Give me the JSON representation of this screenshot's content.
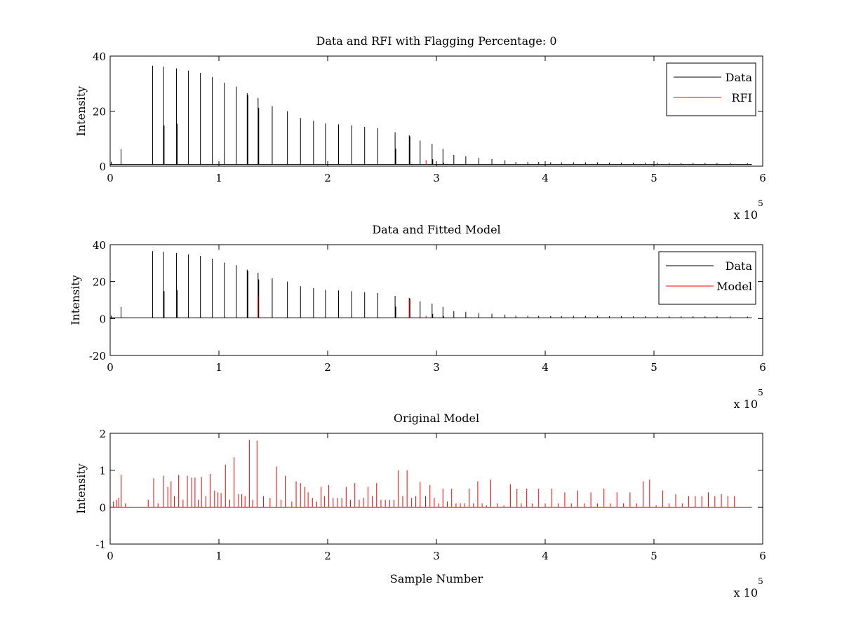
{
  "chart_data": [
    {
      "type": "line",
      "title": "Data and RFI with Flagging Percentage: 0",
      "xlabel": "",
      "ylabel": "Intensity",
      "xlim": [
        0,
        600000
      ],
      "ylim": [
        0,
        40
      ],
      "xticks": [
        "0",
        "1",
        "2",
        "3",
        "4",
        "5",
        "6"
      ],
      "yticks": [
        "0",
        "20",
        "40"
      ],
      "x_exponent_base": "x 10",
      "x_exponent_power": "5",
      "legend": [
        "Data",
        "RFI"
      ],
      "legend_position": "top-right",
      "colors": {
        "Data": "#000000",
        "RFI": "#ff0000"
      },
      "baseline": 0.6,
      "series": [
        {
          "name": "Data",
          "peaks_x": [
            1000,
            10000,
            39000,
            49000,
            61000,
            72000,
            83000,
            94000,
            105000,
            116000,
            126000,
            136000,
            149000,
            163000,
            175000,
            187000,
            198000,
            210000,
            222000,
            234000,
            246000,
            262000,
            275000,
            285000,
            296000,
            306000,
            316000,
            327000,
            339000,
            351000,
            363000,
            373000,
            384000,
            394000,
            405000,
            415000,
            426000,
            437000,
            448000,
            459000,
            470000,
            481000,
            492000,
            503000,
            514000,
            525000,
            536000,
            547000,
            558000,
            570000,
            586000
          ],
          "peaks_y": [
            1.6,
            6.2,
            36.5,
            36.2,
            35.5,
            34.7,
            33.9,
            32.4,
            30.3,
            28.9,
            26.5,
            24.8,
            21.8,
            20.0,
            17.5,
            16.5,
            15.5,
            15.2,
            14.8,
            14.3,
            13.8,
            12.3,
            11.2,
            9.3,
            8.1,
            6.3,
            4.1,
            3.6,
            3.0,
            2.6,
            2.1,
            1.5,
            1.5,
            1.5,
            1.4,
            1.4,
            1.4,
            1.4,
            1.4,
            1.3,
            1.3,
            1.3,
            1.3,
            1.3,
            1.2,
            1.2,
            1.2,
            1.2,
            1.2,
            1.2,
            1.1
          ],
          "secondary_x": [
            49500,
            61500,
            126500,
            136500,
            262500,
            275500,
            296500,
            306500
          ],
          "secondary_y": [
            14.8,
            15.4,
            25.8,
            21.2,
            6.4,
            10.8,
            2.5,
            1.2
          ]
        },
        {
          "name": "RFI",
          "peaks_x": [
            290500
          ],
          "peaks_y": [
            2.2
          ]
        }
      ]
    },
    {
      "type": "line",
      "title": "Data and Fitted Model",
      "xlabel": "",
      "ylabel": "Intensity",
      "xlim": [
        0,
        600000
      ],
      "ylim": [
        -20,
        40
      ],
      "xticks": [
        "0",
        "1",
        "2",
        "3",
        "4",
        "5",
        "6"
      ],
      "yticks": [
        "-20",
        "0",
        "20",
        "40"
      ],
      "x_exponent_base": "x 10",
      "x_exponent_power": "5",
      "legend": [
        "Data",
        "Model"
      ],
      "legend_position": "top-right",
      "colors": {
        "Data": "#000000",
        "Model": "#ff0000"
      },
      "baseline": 0.4,
      "series": [
        {
          "name": "Data",
          "peaks_x": [
            1000,
            10000,
            39000,
            49000,
            61000,
            72000,
            83000,
            94000,
            105000,
            116000,
            126000,
            136000,
            149000,
            163000,
            175000,
            187000,
            198000,
            210000,
            222000,
            234000,
            246000,
            262000,
            275000,
            285000,
            296000,
            306000,
            316000,
            327000,
            339000,
            351000,
            363000,
            373000,
            384000,
            394000,
            405000,
            415000,
            426000,
            437000,
            448000,
            459000,
            470000,
            481000,
            492000,
            503000,
            514000,
            525000,
            536000,
            547000,
            558000,
            570000,
            586000
          ],
          "peaks_y": [
            1.6,
            6.2,
            36.5,
            36.2,
            35.5,
            34.7,
            33.9,
            32.4,
            30.3,
            28.9,
            26.5,
            24.8,
            21.8,
            20.0,
            17.5,
            16.5,
            15.5,
            15.2,
            14.8,
            14.3,
            13.8,
            12.3,
            11.2,
            9.3,
            8.1,
            6.3,
            4.1,
            3.6,
            3.0,
            2.6,
            2.1,
            1.5,
            1.5,
            1.5,
            1.4,
            1.4,
            1.4,
            1.4,
            1.4,
            1.3,
            1.3,
            1.3,
            1.3,
            1.3,
            1.2,
            1.2,
            1.2,
            1.2,
            1.2,
            1.2,
            1.1
          ],
          "secondary_x": [
            49500,
            61500,
            126500,
            136500,
            262500,
            275500,
            296500,
            306500
          ],
          "secondary_y": [
            14.8,
            15.4,
            25.8,
            21.2,
            6.4,
            10.8,
            2.5,
            1.2
          ]
        },
        {
          "name": "Model",
          "peaks_x": [
            136000,
            275000,
            290500
          ],
          "peaks_y": [
            12.5,
            10.0,
            1.5
          ]
        }
      ]
    },
    {
      "type": "line",
      "title": "Original Model",
      "xlabel": "Sample Number",
      "ylabel": "Intensity",
      "xlim": [
        0,
        600000
      ],
      "ylim": [
        -1,
        2
      ],
      "xticks": [
        "0",
        "1",
        "2",
        "3",
        "4",
        "5",
        "6"
      ],
      "yticks": [
        "-1",
        "0",
        "1",
        "2"
      ],
      "x_exponent_base": "x 10",
      "x_exponent_power": "5",
      "colors": {
        "Model": "#ff0000"
      },
      "baseline": 0,
      "series": [
        {
          "name": "",
          "peaks_x": [
            3000,
            6000,
            8000,
            10000,
            14000,
            35000,
            40000,
            44000,
            49000,
            53000,
            56000,
            59000,
            63000,
            67000,
            71000,
            75000,
            78000,
            81000,
            84000,
            88000,
            92000,
            96000,
            99000,
            102000,
            106000,
            110000,
            114000,
            118000,
            121000,
            124000,
            128000,
            131000,
            135000,
            141000,
            147000,
            153000,
            157000,
            161000,
            167000,
            171000,
            175000,
            179000,
            182000,
            186000,
            190000,
            194000,
            197000,
            201000,
            205000,
            209000,
            213000,
            217000,
            221000,
            225000,
            229000,
            233000,
            237000,
            241000,
            245000,
            249000,
            253000,
            257000,
            261000,
            265000,
            269000,
            273000,
            277000,
            281000,
            285000,
            290000,
            294000,
            298000,
            302000,
            306000,
            310000,
            314000,
            318000,
            322000,
            326000,
            330000,
            334000,
            338000,
            342000,
            346000,
            350000,
            356000,
            362000,
            368000,
            374000,
            378000,
            383000,
            388000,
            394000,
            400000,
            406000,
            412000,
            418000,
            424000,
            430000,
            436000,
            442000,
            448000,
            454000,
            460000,
            466000,
            472000,
            478000,
            484000,
            490000,
            496000,
            502000,
            508000,
            514000,
            520000,
            526000,
            532000,
            538000,
            544000,
            550000,
            556000,
            562000,
            568000,
            574000
          ],
          "peaks_y": [
            0.15,
            0.2,
            0.25,
            0.88,
            0.1,
            0.2,
            0.78,
            0.1,
            0.85,
            0.55,
            0.7,
            0.3,
            0.87,
            0.2,
            0.85,
            0.8,
            0.8,
            0.2,
            0.82,
            0.3,
            0.9,
            0.45,
            0.4,
            0.38,
            1.15,
            0.2,
            1.35,
            0.35,
            0.35,
            0.3,
            1.82,
            0.2,
            1.8,
            0.3,
            0.25,
            1.1,
            0.2,
            0.85,
            0.15,
            0.7,
            0.65,
            0.55,
            0.4,
            0.25,
            0.15,
            0.55,
            0.3,
            0.6,
            0.25,
            0.25,
            0.25,
            0.55,
            0.2,
            0.65,
            0.2,
            0.25,
            0.55,
            0.3,
            0.65,
            0.2,
            0.2,
            0.2,
            0.2,
            1.0,
            0.3,
            1.0,
            0.25,
            0.3,
            0.68,
            0.3,
            0.6,
            0.25,
            0.1,
            0.5,
            0.15,
            0.5,
            0.1,
            0.1,
            0.1,
            0.5,
            0.1,
            0.7,
            0.1,
            0.05,
            0.75,
            0.1,
            0.05,
            0.62,
            0.5,
            0.1,
            0.5,
            0.1,
            0.5,
            0.1,
            0.5,
            0.1,
            0.4,
            0.1,
            0.45,
            0.1,
            0.4,
            0.1,
            0.5,
            0.1,
            0.4,
            0.1,
            0.4,
            0.1,
            0.7,
            0.75,
            0.05,
            0.45,
            0.1,
            0.35,
            0.1,
            0.3,
            0.3,
            0.3,
            0.4,
            0.3,
            0.35,
            0.3,
            0.3
          ]
        }
      ]
    }
  ]
}
